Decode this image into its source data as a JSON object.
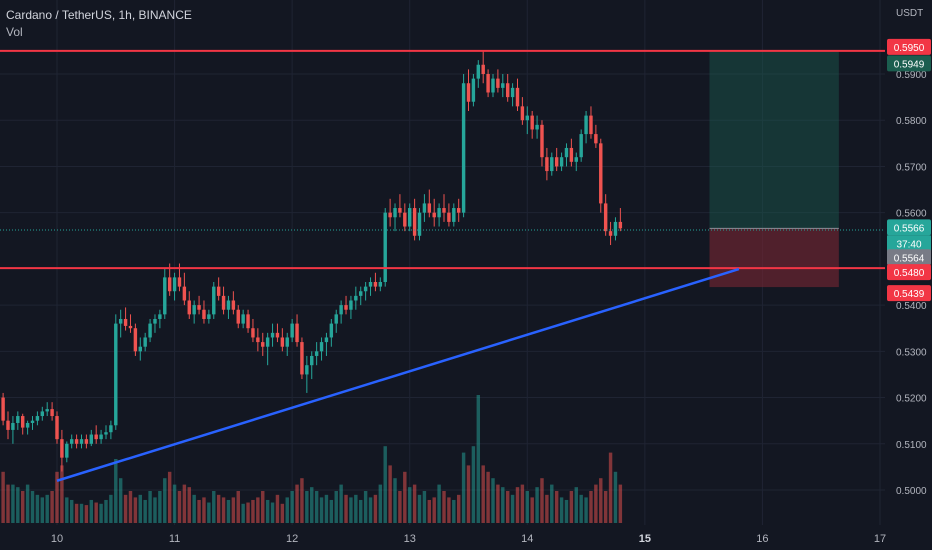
{
  "header": {
    "symbol_line": "Cardano / TetherUS, 1h, BINANCE",
    "volume_label": "Vol"
  },
  "price_axis": {
    "currency": "USDT",
    "ticks": [
      "0.5900",
      "0.5800",
      "0.5700",
      "0.5600",
      "0.5400",
      "0.5300",
      "0.5200",
      "0.5100",
      "0.5000"
    ]
  },
  "time_axis": {
    "ticks": [
      "10",
      "11",
      "12",
      "13",
      "14",
      "15",
      "16",
      "17"
    ],
    "bold_ticks": [
      "15"
    ]
  },
  "price_tags": {
    "resistance": "0.5950",
    "target": "0.5949",
    "current": "0.5566",
    "countdown": "37:40",
    "gray": "0.5564",
    "support": "0.5480",
    "stop": "0.5439"
  },
  "colors": {
    "background": "#131722",
    "up": "#26a69a",
    "down": "#ef5350",
    "level_line": "#f23645",
    "trend_line": "#2962ff",
    "axis_text": "#b2b5be"
  },
  "chart_data": {
    "type": "candlestick",
    "title": "Cardano / TetherUS, 1h, BINANCE",
    "y_axis_label": "USDT",
    "ylim": [
      0.495,
      0.601
    ],
    "x_day_ticks": [
      "10",
      "11",
      "12",
      "13",
      "14",
      "15",
      "16",
      "17"
    ],
    "horizontal_levels": [
      0.595,
      0.548
    ],
    "trendline": {
      "from": {
        "day": 10.0,
        "price": 0.502
      },
      "to": {
        "day": 15.8,
        "price": 0.5478
      }
    },
    "position": {
      "entry": 0.5566,
      "target": 0.5949,
      "stop": 0.5439,
      "start_day": 15.55,
      "end_day": 16.65
    },
    "current_price": 0.5566,
    "volume_max_relative": 1.0,
    "candles_day_start": 9.5,
    "candles_per_day": 24,
    "ohlc": [
      [
        0.521,
        0.5235,
        0.519,
        0.52
      ],
      [
        0.52,
        0.521,
        0.514,
        0.515
      ],
      [
        0.515,
        0.517,
        0.511,
        0.513
      ],
      [
        0.513,
        0.516,
        0.51,
        0.5145
      ],
      [
        0.5145,
        0.517,
        0.513,
        0.516
      ],
      [
        0.516,
        0.5165,
        0.512,
        0.5135
      ],
      [
        0.5135,
        0.515,
        0.512,
        0.5145
      ],
      [
        0.5145,
        0.516,
        0.513,
        0.515
      ],
      [
        0.515,
        0.517,
        0.514,
        0.516
      ],
      [
        0.516,
        0.518,
        0.515,
        0.517
      ],
      [
        0.517,
        0.519,
        0.516,
        0.5175
      ],
      [
        0.5175,
        0.519,
        0.515,
        0.516
      ],
      [
        0.516,
        0.517,
        0.51,
        0.511
      ],
      [
        0.511,
        0.513,
        0.504,
        0.507
      ],
      [
        0.507,
        0.5105,
        0.506,
        0.51
      ],
      [
        0.51,
        0.512,
        0.509,
        0.511
      ],
      [
        0.511,
        0.512,
        0.509,
        0.51
      ],
      [
        0.51,
        0.512,
        0.509,
        0.511
      ],
      [
        0.511,
        0.512,
        0.509,
        0.51
      ],
      [
        0.51,
        0.513,
        0.5095,
        0.512
      ],
      [
        0.512,
        0.514,
        0.51,
        0.511
      ],
      [
        0.511,
        0.513,
        0.51,
        0.512
      ],
      [
        0.512,
        0.514,
        0.511,
        0.5125
      ],
      [
        0.5125,
        0.515,
        0.511,
        0.514
      ],
      [
        0.514,
        0.538,
        0.513,
        0.536
      ],
      [
        0.536,
        0.539,
        0.533,
        0.537
      ],
      [
        0.537,
        0.5395,
        0.5345,
        0.5355
      ],
      [
        0.5355,
        0.538,
        0.534,
        0.535
      ],
      [
        0.535,
        0.536,
        0.529,
        0.53
      ],
      [
        0.53,
        0.533,
        0.528,
        0.531
      ],
      [
        0.531,
        0.534,
        0.53,
        0.533
      ],
      [
        0.533,
        0.537,
        0.532,
        0.536
      ],
      [
        0.536,
        0.538,
        0.534,
        0.537
      ],
      [
        0.537,
        0.539,
        0.535,
        0.538
      ],
      [
        0.538,
        0.548,
        0.537,
        0.546
      ],
      [
        0.546,
        0.549,
        0.542,
        0.543
      ],
      [
        0.543,
        0.547,
        0.541,
        0.546
      ],
      [
        0.546,
        0.549,
        0.543,
        0.544
      ],
      [
        0.544,
        0.547,
        0.54,
        0.541
      ],
      [
        0.541,
        0.543,
        0.537,
        0.538
      ],
      [
        0.538,
        0.541,
        0.536,
        0.54
      ],
      [
        0.54,
        0.542,
        0.538,
        0.539
      ],
      [
        0.539,
        0.541,
        0.536,
        0.537
      ],
      [
        0.537,
        0.539,
        0.536,
        0.538
      ],
      [
        0.538,
        0.545,
        0.537,
        0.544
      ],
      [
        0.544,
        0.546,
        0.541,
        0.542
      ],
      [
        0.542,
        0.544,
        0.538,
        0.539
      ],
      [
        0.539,
        0.542,
        0.537,
        0.541
      ],
      [
        0.541,
        0.543,
        0.538,
        0.539
      ],
      [
        0.539,
        0.54,
        0.535,
        0.536
      ],
      [
        0.536,
        0.539,
        0.535,
        0.538
      ],
      [
        0.538,
        0.539,
        0.534,
        0.535
      ],
      [
        0.535,
        0.537,
        0.532,
        0.533
      ],
      [
        0.533,
        0.535,
        0.53,
        0.532
      ],
      [
        0.532,
        0.534,
        0.529,
        0.531
      ],
      [
        0.531,
        0.534,
        0.527,
        0.533
      ],
      [
        0.533,
        0.536,
        0.531,
        0.534
      ],
      [
        0.534,
        0.536,
        0.532,
        0.533
      ],
      [
        0.533,
        0.535,
        0.53,
        0.531
      ],
      [
        0.531,
        0.534,
        0.529,
        0.533
      ],
      [
        0.533,
        0.537,
        0.532,
        0.536
      ],
      [
        0.536,
        0.538,
        0.531,
        0.532
      ],
      [
        0.532,
        0.533,
        0.524,
        0.525
      ],
      [
        0.525,
        0.529,
        0.521,
        0.527
      ],
      [
        0.527,
        0.53,
        0.524,
        0.529
      ],
      [
        0.529,
        0.532,
        0.527,
        0.53
      ],
      [
        0.53,
        0.533,
        0.528,
        0.532
      ],
      [
        0.532,
        0.534,
        0.529,
        0.533
      ],
      [
        0.533,
        0.537,
        0.531,
        0.536
      ],
      [
        0.536,
        0.539,
        0.534,
        0.538
      ],
      [
        0.538,
        0.541,
        0.536,
        0.54
      ],
      [
        0.54,
        0.542,
        0.538,
        0.539
      ],
      [
        0.539,
        0.542,
        0.537,
        0.541
      ],
      [
        0.541,
        0.544,
        0.539,
        0.542
      ],
      [
        0.542,
        0.544,
        0.54,
        0.543
      ],
      [
        0.543,
        0.545,
        0.541,
        0.544
      ],
      [
        0.544,
        0.546,
        0.542,
        0.545
      ],
      [
        0.545,
        0.547,
        0.543,
        0.544
      ],
      [
        0.544,
        0.546,
        0.543,
        0.545
      ],
      [
        0.545,
        0.561,
        0.544,
        0.56
      ],
      [
        0.56,
        0.563,
        0.557,
        0.559
      ],
      [
        0.559,
        0.562,
        0.556,
        0.561
      ],
      [
        0.561,
        0.564,
        0.559,
        0.56
      ],
      [
        0.56,
        0.562,
        0.556,
        0.557
      ],
      [
        0.557,
        0.562,
        0.556,
        0.561
      ],
      [
        0.561,
        0.563,
        0.554,
        0.555
      ],
      [
        0.555,
        0.561,
        0.554,
        0.56
      ],
      [
        0.56,
        0.564,
        0.558,
        0.562
      ],
      [
        0.562,
        0.565,
        0.559,
        0.56
      ],
      [
        0.56,
        0.563,
        0.557,
        0.559
      ],
      [
        0.559,
        0.562,
        0.557,
        0.561
      ],
      [
        0.561,
        0.564,
        0.558,
        0.56
      ],
      [
        0.56,
        0.562,
        0.557,
        0.558
      ],
      [
        0.558,
        0.562,
        0.557,
        0.561
      ],
      [
        0.561,
        0.563,
        0.558,
        0.56
      ],
      [
        0.56,
        0.59,
        0.559,
        0.588
      ],
      [
        0.588,
        0.591,
        0.582,
        0.584
      ],
      [
        0.584,
        0.59,
        0.583,
        0.589
      ],
      [
        0.589,
        0.593,
        0.587,
        0.592
      ],
      [
        0.592,
        0.595,
        0.588,
        0.59
      ],
      [
        0.59,
        0.591,
        0.585,
        0.586
      ],
      [
        0.586,
        0.59,
        0.585,
        0.589
      ],
      [
        0.589,
        0.591,
        0.586,
        0.587
      ],
      [
        0.587,
        0.59,
        0.585,
        0.588
      ],
      [
        0.588,
        0.59,
        0.584,
        0.585
      ],
      [
        0.585,
        0.588,
        0.583,
        0.587
      ],
      [
        0.587,
        0.589,
        0.582,
        0.583
      ],
      [
        0.583,
        0.585,
        0.579,
        0.58
      ],
      [
        0.58,
        0.583,
        0.577,
        0.581
      ],
      [
        0.581,
        0.582,
        0.576,
        0.578
      ],
      [
        0.578,
        0.581,
        0.576,
        0.579
      ],
      [
        0.579,
        0.58,
        0.57,
        0.572
      ],
      [
        0.572,
        0.574,
        0.567,
        0.569
      ],
      [
        0.569,
        0.573,
        0.568,
        0.572
      ],
      [
        0.572,
        0.574,
        0.569,
        0.57
      ],
      [
        0.57,
        0.573,
        0.569,
        0.572
      ],
      [
        0.572,
        0.575,
        0.57,
        0.574
      ],
      [
        0.574,
        0.576,
        0.57,
        0.571
      ],
      [
        0.571,
        0.573,
        0.569,
        0.572
      ],
      [
        0.572,
        0.578,
        0.571,
        0.577
      ],
      [
        0.577,
        0.582,
        0.575,
        0.581
      ],
      [
        0.581,
        0.583,
        0.576,
        0.577
      ],
      [
        0.577,
        0.579,
        0.574,
        0.575
      ],
      [
        0.575,
        0.576,
        0.56,
        0.562
      ],
      [
        0.562,
        0.564,
        0.555,
        0.556
      ],
      [
        0.556,
        0.558,
        0.553,
        0.555
      ],
      [
        0.555,
        0.559,
        0.554,
        0.558
      ],
      [
        0.558,
        0.561,
        0.556,
        0.5566
      ]
    ],
    "volume_relative": [
      0.45,
      0.4,
      0.3,
      0.3,
      0.28,
      0.25,
      0.3,
      0.25,
      0.22,
      0.2,
      0.22,
      0.25,
      0.4,
      0.45,
      0.2,
      0.18,
      0.15,
      0.15,
      0.14,
      0.18,
      0.16,
      0.15,
      0.18,
      0.22,
      0.5,
      0.35,
      0.22,
      0.25,
      0.2,
      0.22,
      0.18,
      0.25,
      0.2,
      0.25,
      0.35,
      0.4,
      0.3,
      0.25,
      0.3,
      0.28,
      0.22,
      0.18,
      0.2,
      0.16,
      0.25,
      0.22,
      0.2,
      0.18,
      0.2,
      0.25,
      0.15,
      0.16,
      0.18,
      0.2,
      0.25,
      0.18,
      0.16,
      0.22,
      0.15,
      0.2,
      0.25,
      0.3,
      0.35,
      0.25,
      0.28,
      0.25,
      0.2,
      0.22,
      0.18,
      0.25,
      0.3,
      0.22,
      0.2,
      0.22,
      0.18,
      0.25,
      0.2,
      0.22,
      0.3,
      0.6,
      0.45,
      0.35,
      0.25,
      0.4,
      0.28,
      0.3,
      0.22,
      0.25,
      0.18,
      0.2,
      0.3,
      0.25,
      0.2,
      0.18,
      0.22,
      0.55,
      0.45,
      0.6,
      1.0,
      0.45,
      0.4,
      0.35,
      0.3,
      0.28,
      0.25,
      0.22,
      0.28,
      0.3,
      0.25,
      0.2,
      0.28,
      0.35,
      0.22,
      0.3,
      0.25,
      0.2,
      0.18,
      0.25,
      0.28,
      0.22,
      0.2,
      0.25,
      0.3,
      0.35,
      0.25,
      0.55,
      0.4,
      0.3
    ]
  }
}
